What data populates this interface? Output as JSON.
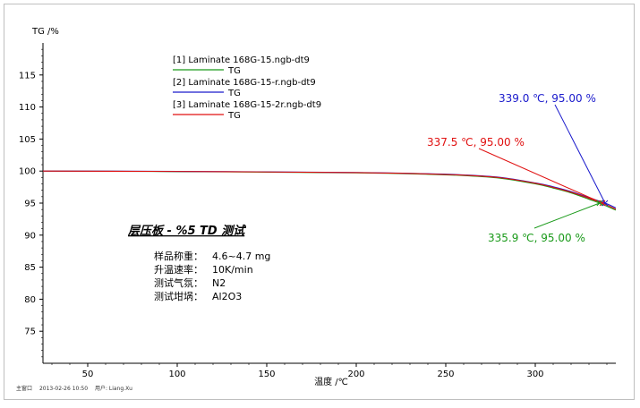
{
  "chart_data": {
    "type": "line",
    "ylabel": "TG /%",
    "xlabel": "温度 /℃",
    "xlim": [
      25,
      345
    ],
    "ylim": [
      70,
      120
    ],
    "x_ticks": [
      50,
      100,
      150,
      200,
      250,
      300
    ],
    "y_ticks": [
      75,
      80,
      85,
      90,
      95,
      100,
      105,
      110,
      115
    ],
    "grid": false,
    "legend_position": "top-left",
    "series": [
      {
        "name": "[1] Laminate 168G-15.ngb-dt9",
        "sub_label": "TG",
        "color": "#1a9a1a",
        "x": [
          25,
          100,
          200,
          240,
          260,
          280,
          300,
          310,
          320,
          330,
          335.9,
          345
        ],
        "y": [
          100.0,
          99.92,
          99.72,
          99.5,
          99.3,
          98.9,
          98.0,
          97.35,
          96.6,
          95.6,
          95.0,
          93.9
        ]
      },
      {
        "name": "[2] Laminate 168G-15-r.ngb-dt9",
        "sub_label": "TG",
        "color": "#1a1acc",
        "x": [
          25,
          100,
          200,
          240,
          260,
          280,
          300,
          310,
          320,
          330,
          339.0,
          345
        ],
        "y": [
          100.0,
          99.95,
          99.78,
          99.58,
          99.4,
          99.02,
          98.15,
          97.55,
          96.8,
          95.85,
          95.0,
          94.25
        ]
      },
      {
        "name": "[3] Laminate 168G-15-2r.ngb-dt9",
        "sub_label": "TG",
        "color": "#e01010",
        "x": [
          25,
          100,
          200,
          240,
          260,
          280,
          300,
          310,
          320,
          330,
          337.5,
          345
        ],
        "y": [
          100.0,
          99.94,
          99.76,
          99.55,
          99.36,
          98.98,
          98.1,
          97.45,
          96.7,
          95.75,
          95.0,
          94.05
        ]
      }
    ],
    "annotations": [
      {
        "text": "339.0 ℃, 95.00 %",
        "color": "#1a1acc",
        "x": 339.0,
        "y": 95.0
      },
      {
        "text": "337.5 ℃, 95.00 %",
        "color": "#e01010",
        "x": 337.5,
        "y": 95.0
      },
      {
        "text": "335.9 ℃, 95.00 %",
        "color": "#1a9a1a",
        "x": 335.9,
        "y": 95.0
      }
    ]
  },
  "plot_title": "层压板 - %5 TD 测试",
  "conditions": [
    {
      "label": "样品称重：",
      "value": "4.6~4.7 mg"
    },
    {
      "label": "升温速率：",
      "value": "10K/min"
    },
    {
      "label": "测试气氛：",
      "value": "N2"
    },
    {
      "label": "测试坩埚：",
      "value": "Al2O3"
    }
  ],
  "footer": {
    "window": "主窗口",
    "datetime": "2013-02-26 10:50",
    "user": "用户: Liang.Xu"
  }
}
